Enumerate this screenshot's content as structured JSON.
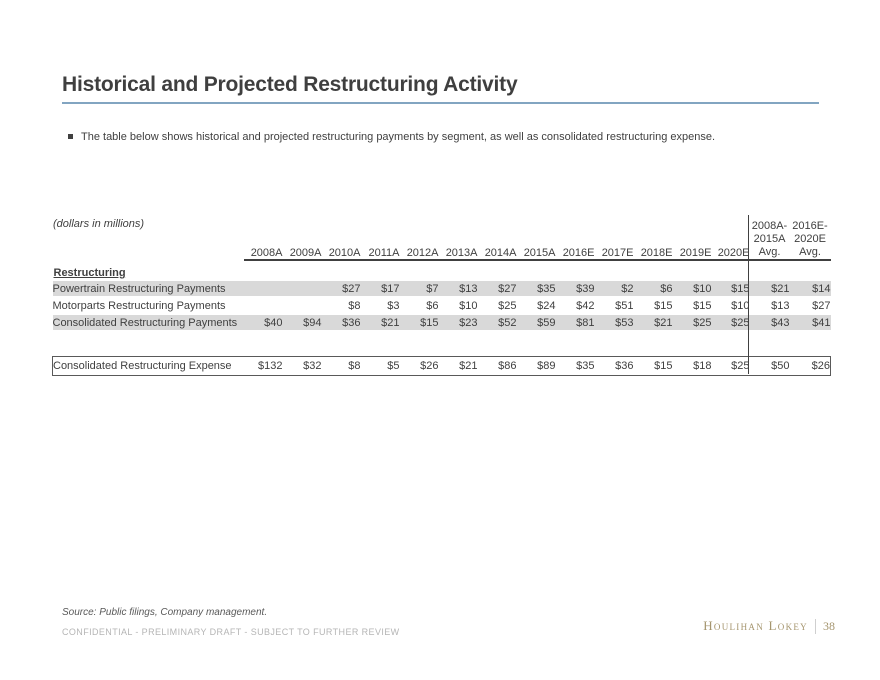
{
  "page": {
    "title": "Historical and Projected Restructuring Activity",
    "bullet": "The table below shows historical and projected restructuring payments by segment, as well as consolidated restructuring expense."
  },
  "table": {
    "units_note": "(dollars in millions)",
    "section_label": "Restructuring",
    "year_columns": [
      "2008A",
      "2009A",
      "2010A",
      "2011A",
      "2012A",
      "2013A",
      "2014A",
      "2015A",
      "2016E",
      "2017E",
      "2018E",
      "2019E",
      "2020E"
    ],
    "avg_columns": [
      {
        "lines": [
          "2008A-",
          "2015A",
          "Avg."
        ]
      },
      {
        "lines": [
          "2016E-",
          "2020E",
          "Avg."
        ]
      }
    ],
    "rows": [
      {
        "label": "Powertrain Restructuring Payments",
        "values": [
          "",
          "",
          "$27",
          "$17",
          "$7",
          "$13",
          "$27",
          "$35",
          "$39",
          "$2",
          "$6",
          "$10",
          "$15"
        ],
        "avgs": [
          "$21",
          "$14"
        ],
        "shaded": true
      },
      {
        "label": "Motorparts Restructuring Payments",
        "values": [
          "",
          "",
          "$8",
          "$3",
          "$6",
          "$10",
          "$25",
          "$24",
          "$42",
          "$51",
          "$15",
          "$15",
          "$10"
        ],
        "avgs": [
          "$13",
          "$27"
        ],
        "shaded": false
      },
      {
        "label": "Consolidated Restructuring Payments",
        "values": [
          "$40",
          "$94",
          "$36",
          "$21",
          "$15",
          "$23",
          "$52",
          "$59",
          "$81",
          "$53",
          "$21",
          "$25",
          "$25"
        ],
        "avgs": [
          "$43",
          "$41"
        ],
        "shaded": true
      }
    ],
    "total_row": {
      "label": "Consolidated Restructuring Expense",
      "values": [
        "$132",
        "$32",
        "$8",
        "$5",
        "$26",
        "$21",
        "$86",
        "$89",
        "$35",
        "$36",
        "$15",
        "$18",
        "$25"
      ],
      "avgs": [
        "$50",
        "$26"
      ]
    }
  },
  "footer": {
    "source": "Source: Public filings, Company management.",
    "confidential": "CONFIDENTIAL - PRELIMINARY DRAFT - SUBJECT TO FURTHER REVIEW",
    "brand": "Houlihan Lokey",
    "page_number": "38"
  },
  "colors": {
    "title_text": "#3f3f3f",
    "title_rule_blue": "#82a5c1",
    "row_shade_gray": "#d9d9d9",
    "table_rule_dark": "#404040",
    "brand_gold": "#a5956e",
    "confidential_gray": "#b5b5b5"
  }
}
